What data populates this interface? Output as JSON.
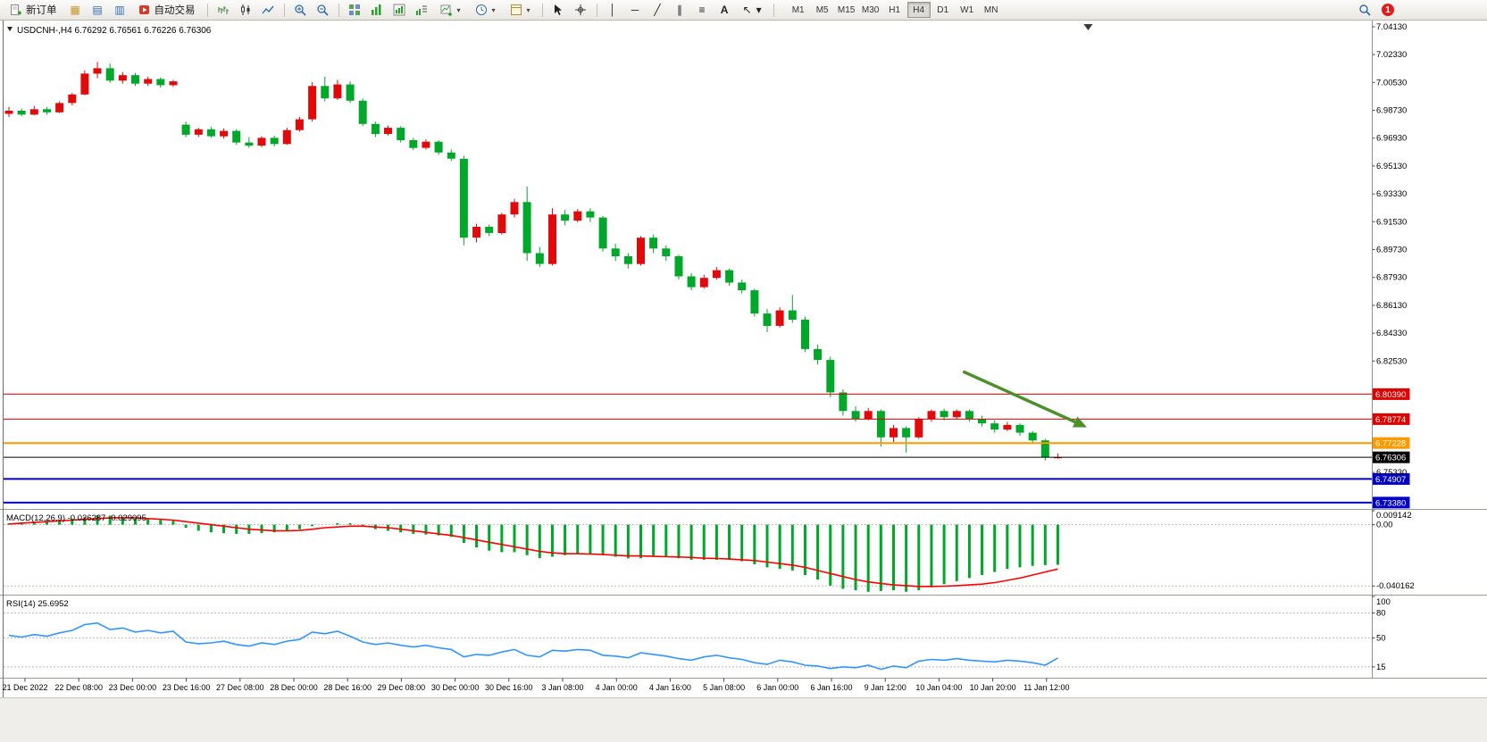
{
  "toolbar": {
    "new_order_label": "新订单",
    "autotrade_label": "自动交易",
    "timeframes": [
      "M1",
      "M5",
      "M15",
      "M30",
      "H1",
      "H4",
      "D1",
      "W1",
      "MN"
    ],
    "active_timeframe": "H4",
    "notification_count": "1"
  },
  "icon_glyphs": {
    "market_watch": "▦",
    "data_window": "▤",
    "navigator": "▥",
    "vertical_line": "│",
    "horizontal_line": "─",
    "trendline": "╱",
    "channel": "∥",
    "fibonacci": "≡",
    "text_tool": "A",
    "arrows_tool": "↖",
    "caret": "▾"
  },
  "chart_data": {
    "type": "candlestick",
    "symbol": "USDCNH-",
    "timeframe": "H4",
    "title": "USDCNH-,H4",
    "title_ohlc": "6.76292 6.76561 6.76226 6.76306",
    "up_color": "#E00A0A",
    "down_color": "#00A82A",
    "main": {
      "ylim": [
        6.7297,
        7.0453
      ],
      "price_axis_labels": [
        "7.04130",
        "7.02330",
        "7.00530",
        "6.98730",
        "6.96930",
        "6.95130",
        "6.93330",
        "6.91530",
        "6.89730",
        "6.87930",
        "6.86130",
        "6.84330",
        "6.82530",
        "6.75330"
      ],
      "hlines": [
        {
          "price": 6.8039,
          "label": "6.80390",
          "color": "#E00000",
          "width": 1
        },
        {
          "price": 6.78774,
          "label": "6.78774",
          "color": "#E00000",
          "width": 1
        },
        {
          "price": 6.77228,
          "label": "6.77228",
          "color": "#FF9900",
          "width": 2
        },
        {
          "price": 6.76306,
          "label": "6.76306",
          "color": "#000000",
          "width": 1
        },
        {
          "price": 6.74907,
          "label": "6.74907",
          "color": "#0000C8",
          "width": 2
        },
        {
          "price": 6.7338,
          "label": "6.73380",
          "color": "#0000C8",
          "width": 2
        }
      ],
      "candles": [
        [
          6.985,
          6.9895,
          6.983,
          6.987
        ],
        [
          6.987,
          6.9885,
          6.9835,
          6.9845
        ],
        [
          6.9845,
          6.99,
          6.984,
          6.988
        ],
        [
          6.988,
          6.9895,
          6.9845,
          6.986
        ],
        [
          6.986,
          6.993,
          6.9855,
          6.992
        ],
        [
          6.992,
          6.9985,
          6.9905,
          6.9975
        ],
        [
          6.9975,
          7.013,
          6.997,
          7.011
        ],
        [
          7.011,
          7.0185,
          7.008,
          7.0145
        ],
        [
          7.0145,
          7.0175,
          7.005,
          7.0065
        ],
        [
          7.0065,
          7.012,
          7.0045,
          7.01
        ],
        [
          7.01,
          7.0115,
          7.003,
          7.0045
        ],
        [
          7.0045,
          7.009,
          7.003,
          7.0075
        ],
        [
          7.0075,
          7.0085,
          7.002,
          7.0035
        ],
        [
          7.0035,
          7.007,
          7.0025,
          7.006
        ],
        [
          6.978,
          6.98,
          6.97,
          6.9715
        ],
        [
          6.9715,
          6.976,
          6.97,
          6.975
        ],
        [
          6.975,
          6.9765,
          6.9695,
          6.9705
        ],
        [
          6.9705,
          6.9755,
          6.969,
          6.974
        ],
        [
          6.974,
          6.975,
          6.965,
          6.9665
        ],
        [
          6.9665,
          6.97,
          6.963,
          6.9645
        ],
        [
          6.9645,
          6.9705,
          6.9635,
          6.9695
        ],
        [
          6.9695,
          6.971,
          6.964,
          6.9655
        ],
        [
          6.9655,
          6.976,
          6.965,
          6.9745
        ],
        [
          6.9745,
          6.983,
          6.9735,
          6.9815
        ],
        [
          6.9815,
          7.0055,
          6.98,
          7.003
        ],
        [
          7.003,
          7.009,
          6.993,
          6.995
        ],
        [
          6.995,
          7.007,
          6.994,
          7.004
        ],
        [
          7.004,
          7.006,
          6.992,
          6.9935
        ],
        [
          6.9935,
          6.995,
          6.977,
          6.9785
        ],
        [
          6.9785,
          6.98,
          6.97,
          6.972
        ],
        [
          6.972,
          6.9775,
          6.971,
          6.976
        ],
        [
          6.976,
          6.977,
          6.9665,
          6.968
        ],
        [
          6.968,
          6.9695,
          6.9615,
          6.963
        ],
        [
          6.963,
          6.9685,
          6.962,
          6.967
        ],
        [
          6.967,
          6.968,
          6.9585,
          6.96
        ],
        [
          6.96,
          6.962,
          6.9545,
          6.956
        ],
        [
          6.956,
          6.958,
          6.9,
          6.905
        ],
        [
          6.905,
          6.914,
          6.902,
          6.912
        ],
        [
          6.912,
          6.9135,
          6.906,
          6.908
        ],
        [
          6.908,
          6.921,
          6.907,
          6.92
        ],
        [
          6.92,
          6.93,
          6.918,
          6.928
        ],
        [
          6.928,
          6.938,
          6.89,
          6.895
        ],
        [
          6.895,
          6.899,
          6.886,
          6.888
        ],
        [
          6.888,
          6.924,
          6.887,
          6.92
        ],
        [
          6.92,
          6.923,
          6.913,
          6.916
        ],
        [
          6.916,
          6.9235,
          6.915,
          6.922
        ],
        [
          6.922,
          6.924,
          6.915,
          6.918
        ],
        [
          6.918,
          6.919,
          6.896,
          6.898
        ],
        [
          6.898,
          6.901,
          6.89,
          6.893
        ],
        [
          6.893,
          6.895,
          6.885,
          6.888
        ],
        [
          6.888,
          6.906,
          6.887,
          6.905
        ],
        [
          6.905,
          6.907,
          6.895,
          6.898
        ],
        [
          6.898,
          6.9,
          6.89,
          6.893
        ],
        [
          6.893,
          6.894,
          6.878,
          6.88
        ],
        [
          6.88,
          6.882,
          6.871,
          6.873
        ],
        [
          6.873,
          6.881,
          6.872,
          6.879
        ],
        [
          6.879,
          6.886,
          6.878,
          6.884
        ],
        [
          6.884,
          6.885,
          6.874,
          6.876
        ],
        [
          6.876,
          6.878,
          6.869,
          6.871
        ],
        [
          6.871,
          6.872,
          6.854,
          6.856
        ],
        [
          6.856,
          6.859,
          6.844,
          6.848
        ],
        [
          6.848,
          6.86,
          6.847,
          6.858
        ],
        [
          6.858,
          6.868,
          6.85,
          6.852
        ],
        [
          6.852,
          6.854,
          6.831,
          6.833
        ],
        [
          6.833,
          6.836,
          6.823,
          6.826
        ],
        [
          6.826,
          6.828,
          6.802,
          6.805
        ],
        [
          6.805,
          6.807,
          6.79,
          6.793
        ],
        [
          6.793,
          6.796,
          6.786,
          6.788
        ],
        [
          6.788,
          6.795,
          6.787,
          6.793
        ],
        [
          6.793,
          6.794,
          6.77,
          6.776
        ],
        [
          6.776,
          6.784,
          6.773,
          6.782
        ],
        [
          6.782,
          6.783,
          6.766,
          6.776
        ],
        [
          6.776,
          6.789,
          6.775,
          6.788
        ],
        [
          6.788,
          6.794,
          6.786,
          6.793
        ],
        [
          6.793,
          6.7945,
          6.787,
          6.789
        ],
        [
          6.789,
          6.794,
          6.788,
          6.793
        ],
        [
          6.793,
          6.794,
          6.786,
          6.788
        ],
        [
          6.788,
          6.79,
          6.783,
          6.785
        ],
        [
          6.785,
          6.787,
          6.779,
          6.781
        ],
        [
          6.781,
          6.786,
          6.78,
          6.784
        ],
        [
          6.784,
          6.785,
          6.777,
          6.779
        ],
        [
          6.779,
          6.78,
          6.772,
          6.774
        ],
        [
          6.774,
          6.775,
          6.761,
          6.763
        ],
        [
          6.76292,
          6.76561,
          6.76226,
          6.76306
        ]
      ]
    },
    "time_labels": [
      "21 Dec 2022",
      "22 Dec 08:00",
      "23 Dec 00:00",
      "23 Dec 16:00",
      "27 Dec 08:00",
      "28 Dec 00:00",
      "28 Dec 16:00",
      "29 Dec 08:00",
      "30 Dec 00:00",
      "30 Dec 16:00",
      "3 Jan 08:00",
      "4 Jan 00:00",
      "4 Jan 16:00",
      "5 Jan 08:00",
      "6 Jan 00:00",
      "6 Jan 16:00",
      "9 Jan 12:00",
      "10 Jan 04:00",
      "10 Jan 20:00",
      "11 Jan 12:00"
    ],
    "macd": {
      "label": "MACD(12,26,9)",
      "value_main": "-0.026287",
      "value_signal": "-0.029095",
      "ylim": [
        -0.0453,
        0.009142
      ],
      "levels": [
        0,
        -0.040162
      ],
      "axis": [
        {
          "v": 0.009142,
          "t": "0.009142"
        },
        {
          "v": 0,
          "t": "0.00"
        },
        {
          "v": -0.040162,
          "t": "-0.040162"
        }
      ],
      "hist_color": "#00A82A",
      "signal_color": "#FF0000",
      "histogram": [
        0.001,
        0.0015,
        0.002,
        0.0025,
        0.003,
        0.004,
        0.005,
        0.006,
        0.006,
        0.005,
        0.004,
        0.0035,
        0.003,
        0.0025,
        -0.002,
        -0.004,
        -0.005,
        -0.0055,
        -0.006,
        -0.006,
        -0.0055,
        -0.005,
        -0.004,
        -0.003,
        -0.001,
        0.0,
        0.001,
        0.001,
        -0.001,
        -0.003,
        -0.004,
        -0.005,
        -0.006,
        -0.0065,
        -0.007,
        -0.008,
        -0.012,
        -0.015,
        -0.017,
        -0.018,
        -0.018,
        -0.02,
        -0.022,
        -0.021,
        -0.02,
        -0.019,
        -0.019,
        -0.02,
        -0.021,
        -0.022,
        -0.022,
        -0.021,
        -0.021,
        -0.022,
        -0.023,
        -0.023,
        -0.023,
        -0.023,
        -0.024,
        -0.026,
        -0.028,
        -0.029,
        -0.03,
        -0.033,
        -0.036,
        -0.04,
        -0.042,
        -0.043,
        -0.044,
        -0.0435,
        -0.043,
        -0.044,
        -0.043,
        -0.041,
        -0.039,
        -0.037,
        -0.035,
        -0.033,
        -0.031,
        -0.029,
        -0.028,
        -0.027,
        -0.0265,
        -0.026287
      ],
      "signal": [
        0.0005,
        0.001,
        0.0015,
        0.002,
        0.0025,
        0.003,
        0.0035,
        0.004,
        0.0045,
        0.0045,
        0.0045,
        0.004,
        0.0035,
        0.003,
        0.002,
        0.001,
        0.0,
        -0.001,
        -0.002,
        -0.003,
        -0.0035,
        -0.004,
        -0.004,
        -0.0038,
        -0.003,
        -0.002,
        -0.0015,
        -0.001,
        -0.001,
        -0.0015,
        -0.002,
        -0.003,
        -0.004,
        -0.005,
        -0.006,
        -0.007,
        -0.0085,
        -0.01,
        -0.0115,
        -0.013,
        -0.0145,
        -0.016,
        -0.0175,
        -0.0185,
        -0.019,
        -0.019,
        -0.0192,
        -0.0195,
        -0.02,
        -0.0205,
        -0.0205,
        -0.0208,
        -0.021,
        -0.0212,
        -0.0215,
        -0.022,
        -0.0222,
        -0.0225,
        -0.023,
        -0.0235,
        -0.0245,
        -0.0255,
        -0.0265,
        -0.028,
        -0.03,
        -0.032,
        -0.034,
        -0.036,
        -0.0375,
        -0.0385,
        -0.0395,
        -0.04,
        -0.0405,
        -0.0405,
        -0.0403,
        -0.04,
        -0.0395,
        -0.039,
        -0.038,
        -0.0365,
        -0.035,
        -0.033,
        -0.031,
        -0.029095
      ]
    },
    "rsi": {
      "label": "RSI(14)",
      "value": "25.6952",
      "ylim": [
        3,
        100
      ],
      "levels": [
        80,
        50,
        15
      ],
      "axis": [
        {
          "v": 100,
          "t": "100"
        },
        {
          "v": 80,
          "t": "80"
        },
        {
          "v": 50,
          "t": "50"
        },
        {
          "v": 15,
          "t": "15"
        }
      ],
      "color": "#2F96FF",
      "values": [
        53,
        51,
        54,
        52,
        56,
        59,
        66,
        68,
        60,
        62,
        57,
        59,
        56,
        58,
        45,
        43,
        44,
        46,
        42,
        40,
        44,
        42,
        46,
        48,
        57,
        55,
        58,
        52,
        45,
        42,
        44,
        41,
        39,
        41,
        38,
        36,
        27,
        30,
        29,
        33,
        36,
        29,
        27,
        35,
        34,
        36,
        35,
        29,
        28,
        26,
        32,
        30,
        28,
        25,
        23,
        27,
        29,
        26,
        24,
        20,
        18,
        23,
        21,
        17,
        16,
        13,
        15,
        14,
        17,
        12,
        16,
        14,
        22,
        24,
        23,
        25,
        23,
        22,
        21,
        23,
        22,
        20,
        17,
        25.6952
      ]
    },
    "annotations": {
      "arrow": {
        "from_index": 75.5,
        "from_price": 6.8185,
        "to_index": 85.3,
        "to_price": 6.7825,
        "color": "#4E8F2B"
      },
      "shift_marker_index": 85.4
    }
  }
}
